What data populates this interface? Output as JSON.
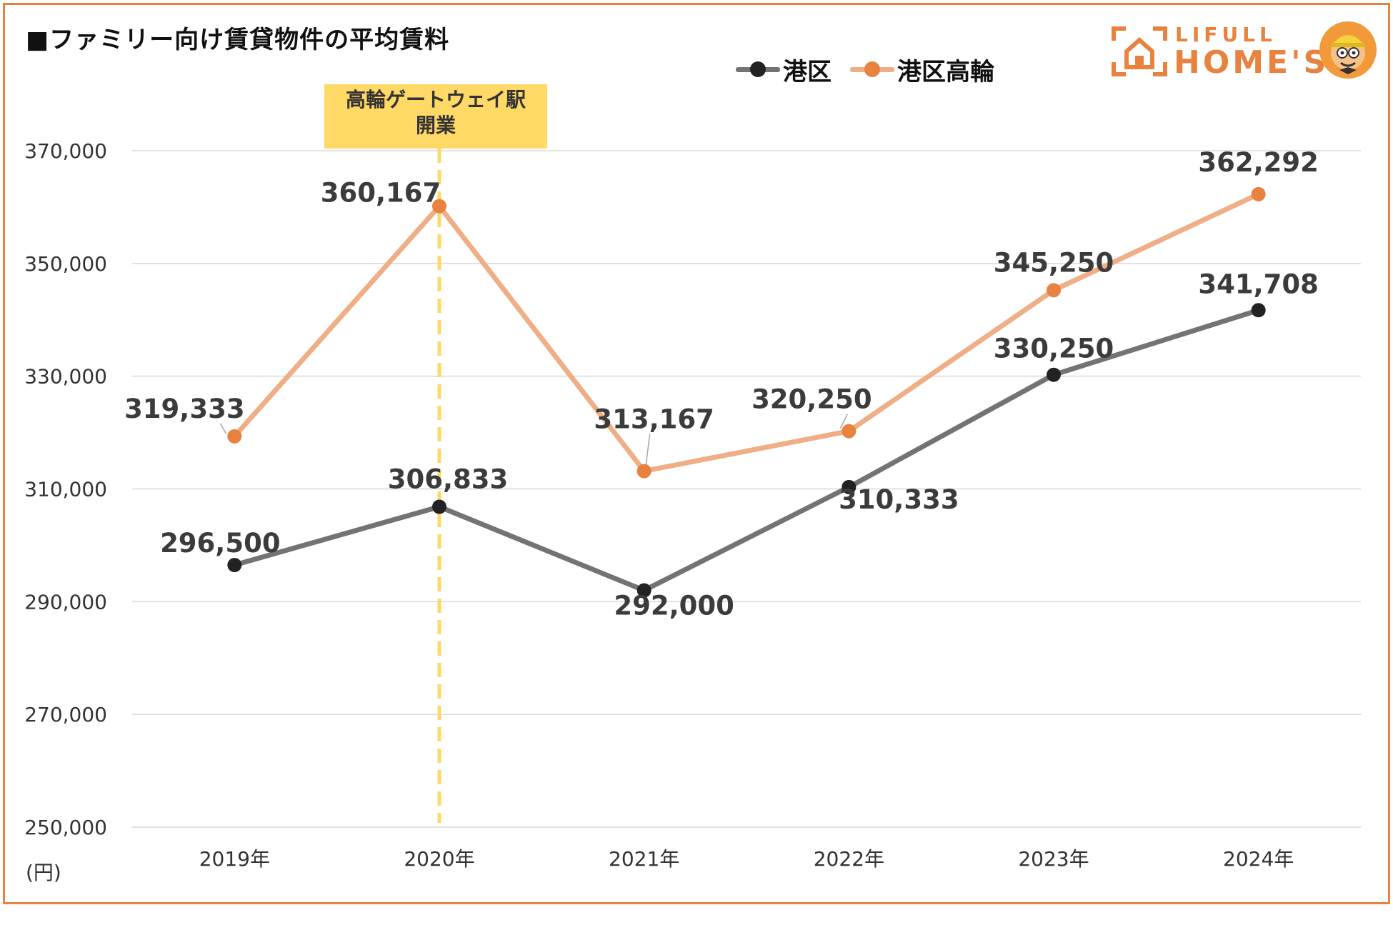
{
  "title": "■ファミリー向け賃貸物件の平均賃料",
  "legend": {
    "items": [
      {
        "label": "港区",
        "color": "#3b3b3b",
        "dot": "#222222"
      },
      {
        "label": "港区高輪",
        "color": "#f0ae86",
        "dot": "#e8823e"
      }
    ]
  },
  "logo": {
    "top_text": "LIFULL",
    "main_text": "HOME'S",
    "icon": "house-icon",
    "mascot": "mascot-icon",
    "color": "#e8823e"
  },
  "annotation": {
    "line1": "高輪ゲートウェイ駅",
    "line2": "開業",
    "category": "2020年",
    "color": "#ffd966",
    "line_color": "#ffd966"
  },
  "unit": "(円)",
  "chart_data": {
    "type": "line",
    "categories": [
      "2019年",
      "2020年",
      "2021年",
      "2022年",
      "2023年",
      "2024年"
    ],
    "ylim": [
      250000,
      370000
    ],
    "yticks": [
      250000,
      270000,
      290000,
      310000,
      330000,
      350000,
      370000
    ],
    "ytick_labels": [
      "250,000",
      "270,000",
      "290,000",
      "310,000",
      "330,000",
      "350,000",
      "370,000"
    ],
    "grid": true,
    "legend_position": "top-right",
    "series": [
      {
        "name": "港区",
        "values": [
          296500,
          306833,
          292000,
          310333,
          330250,
          341708
        ],
        "labels": [
          "296,500",
          "306,833",
          "292,000",
          "310,333",
          "330,250",
          "341,708"
        ],
        "line_color": "#737373",
        "marker_color": "#222222"
      },
      {
        "name": "港区高輪",
        "values": [
          319333,
          360167,
          313167,
          320250,
          345250,
          362292
        ],
        "labels": [
          "319,333",
          "360,167",
          "313,167",
          "320,250",
          "345,250",
          "362,292"
        ],
        "line_color": "#f0ae86",
        "marker_color": "#e8823e"
      }
    ]
  }
}
